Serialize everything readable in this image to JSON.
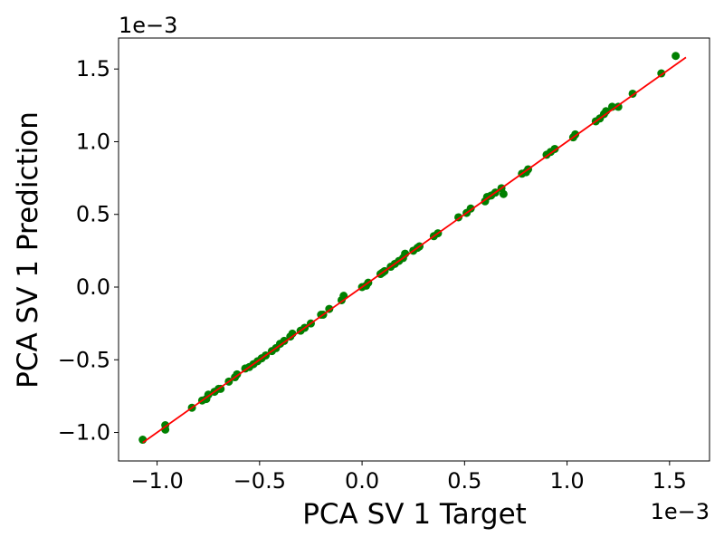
{
  "chart_data": {
    "type": "scatter",
    "xlabel": "PCA SV 1 Target",
    "ylabel": "PCA SV 1 Prediction",
    "x_offset": "1e−3",
    "y_offset": "1e−3",
    "color": "#008000",
    "x": [
      -1.07,
      -0.96,
      -0.96,
      -0.83,
      -0.78,
      -0.76,
      -0.75,
      -0.72,
      -0.7,
      -0.69,
      -0.65,
      -0.62,
      -0.61,
      -0.57,
      -0.55,
      -0.53,
      -0.51,
      -0.49,
      -0.47,
      -0.44,
      -0.42,
      -0.4,
      -0.38,
      -0.35,
      -0.34,
      -0.3,
      -0.28,
      -0.25,
      -0.2,
      -0.19,
      -0.16,
      -0.1,
      -0.09,
      0.0,
      0.02,
      0.03,
      0.09,
      0.1,
      0.11,
      0.14,
      0.16,
      0.18,
      0.2,
      0.21,
      0.25,
      0.27,
      0.28,
      0.35,
      0.37,
      0.47,
      0.51,
      0.53,
      0.6,
      0.61,
      0.63,
      0.65,
      0.68,
      0.69,
      0.78,
      0.8,
      0.81,
      0.9,
      0.92,
      0.94,
      1.03,
      1.04,
      1.14,
      1.16,
      1.18,
      1.19,
      1.22,
      1.25,
      1.32,
      1.46,
      1.53
    ],
    "values": [
      -1.05,
      -0.95,
      -0.98,
      -0.83,
      -0.78,
      -0.77,
      -0.74,
      -0.72,
      -0.7,
      -0.7,
      -0.65,
      -0.62,
      -0.6,
      -0.56,
      -0.55,
      -0.53,
      -0.51,
      -0.49,
      -0.47,
      -0.44,
      -0.42,
      -0.39,
      -0.37,
      -0.34,
      -0.32,
      -0.3,
      -0.28,
      -0.25,
      -0.19,
      -0.19,
      -0.15,
      -0.09,
      -0.06,
      0.0,
      0.01,
      0.03,
      0.09,
      0.1,
      0.11,
      0.14,
      0.16,
      0.18,
      0.2,
      0.23,
      0.25,
      0.27,
      0.28,
      0.35,
      0.37,
      0.48,
      0.51,
      0.54,
      0.59,
      0.62,
      0.63,
      0.65,
      0.68,
      0.64,
      0.78,
      0.79,
      0.81,
      0.91,
      0.93,
      0.95,
      1.03,
      1.05,
      1.14,
      1.16,
      1.19,
      1.21,
      1.24,
      1.24,
      1.33,
      1.47,
      1.59
    ],
    "line": {
      "color": "#ff0000",
      "x": [
        -1.07,
        1.58
      ],
      "values": [
        -1.07,
        1.58
      ]
    },
    "xlim": [
      -1.188,
      1.695
    ],
    "ylim": [
      -1.196,
      1.713
    ],
    "xticks": [
      {
        "value": -1,
        "label": "−1.0"
      },
      {
        "value": -0.5,
        "label": "−0.5"
      },
      {
        "value": 0,
        "label": "0.0"
      },
      0.5,
      {
        "value": 1,
        "label": "1.0"
      },
      1.5
    ],
    "yticks": [
      {
        "value": -1,
        "label": "−1.0"
      },
      {
        "value": -0.5,
        "label": "−0.5"
      },
      {
        "value": 0,
        "label": "0.0"
      },
      0.5,
      {
        "value": 1,
        "label": "1.0"
      },
      1.5
    ]
  }
}
